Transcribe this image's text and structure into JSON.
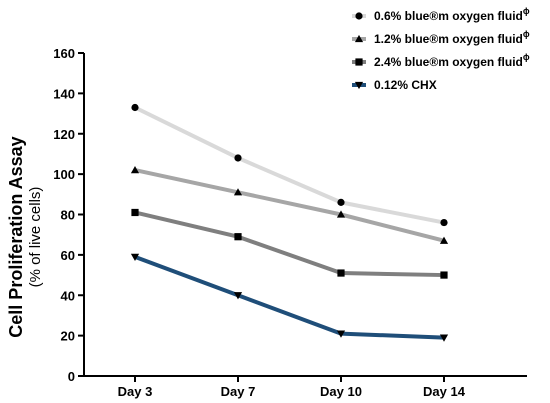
{
  "chart_data": {
    "type": "line",
    "ylabel": "Cell Proliferation Assay",
    "ylabel_sub": "(% of live cells)",
    "categories": [
      "Day 3",
      "Day 7",
      "Day 10",
      "Day 14"
    ],
    "ylim": [
      0,
      160
    ],
    "yticks": [
      0,
      20,
      40,
      60,
      80,
      100,
      120,
      140,
      160
    ],
    "legend_position": "top-right",
    "series": [
      {
        "name": "0.6% blue®m oxygen fluid",
        "sup": "ϕ",
        "marker": "circle",
        "color": "#d9d9d9",
        "values": [
          133,
          108,
          86,
          76
        ]
      },
      {
        "name": "1.2% blue®m oxygen fluid",
        "sup": "ϕ",
        "marker": "triangle",
        "color": "#a6a6a6",
        "values": [
          102,
          91,
          80,
          67
        ]
      },
      {
        "name": "2.4% blue®m oxygen fluid",
        "sup": "ϕ",
        "marker": "square",
        "color": "#7f7f7f",
        "values": [
          81,
          69,
          51,
          50
        ]
      },
      {
        "name": "0.12% CHX",
        "sup": "",
        "marker": "triangle-down",
        "color": "#1f4e79",
        "values": [
          59,
          40,
          21,
          19
        ]
      }
    ]
  }
}
